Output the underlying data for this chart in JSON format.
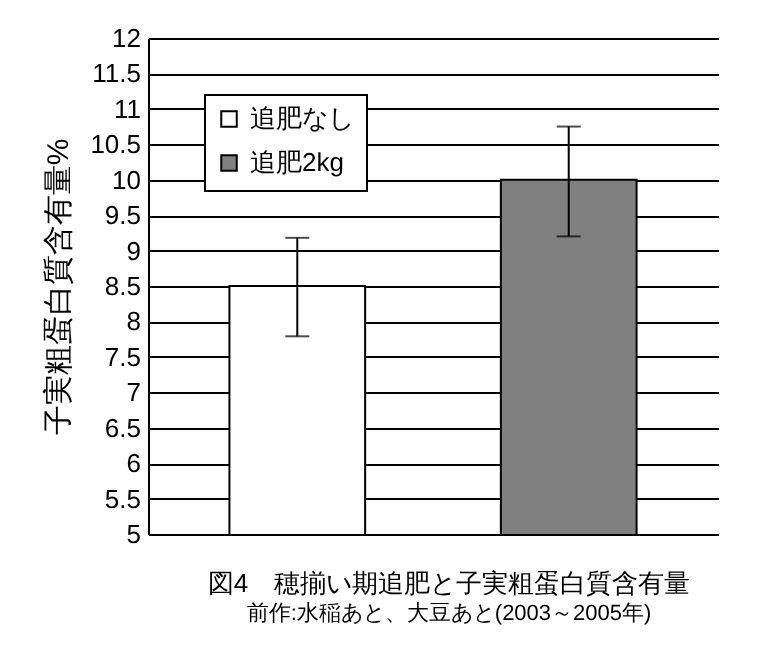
{
  "chart_data": {
    "type": "bar",
    "title": "図4　穂揃い期追肥と子実粗蛋白質含有量",
    "annotations": [
      "前作:水稲あと、大豆あと(2003～2005年)"
    ],
    "ylabel": "子実粗蛋白質含有量%",
    "categories": [
      null,
      null
    ],
    "series": [
      {
        "name": "追肥なし",
        "color": "#ffffff",
        "values": [
          8.5,
          null
        ],
        "errors": [
          [
            7.79,
            9.18
          ],
          null
        ]
      },
      {
        "name": "追肥2kg",
        "color": "#808080",
        "values": [
          null,
          10.0
        ],
        "errors": [
          null,
          [
            9.2,
            10.75
          ]
        ]
      }
    ],
    "ylim": [
      5,
      12
    ],
    "yticks": [
      5,
      5.5,
      6,
      6.5,
      7,
      7.5,
      8,
      8.5,
      9,
      9.5,
      10,
      10.5,
      11,
      11.5,
      12
    ],
    "grid": "y",
    "legend": "top left"
  }
}
